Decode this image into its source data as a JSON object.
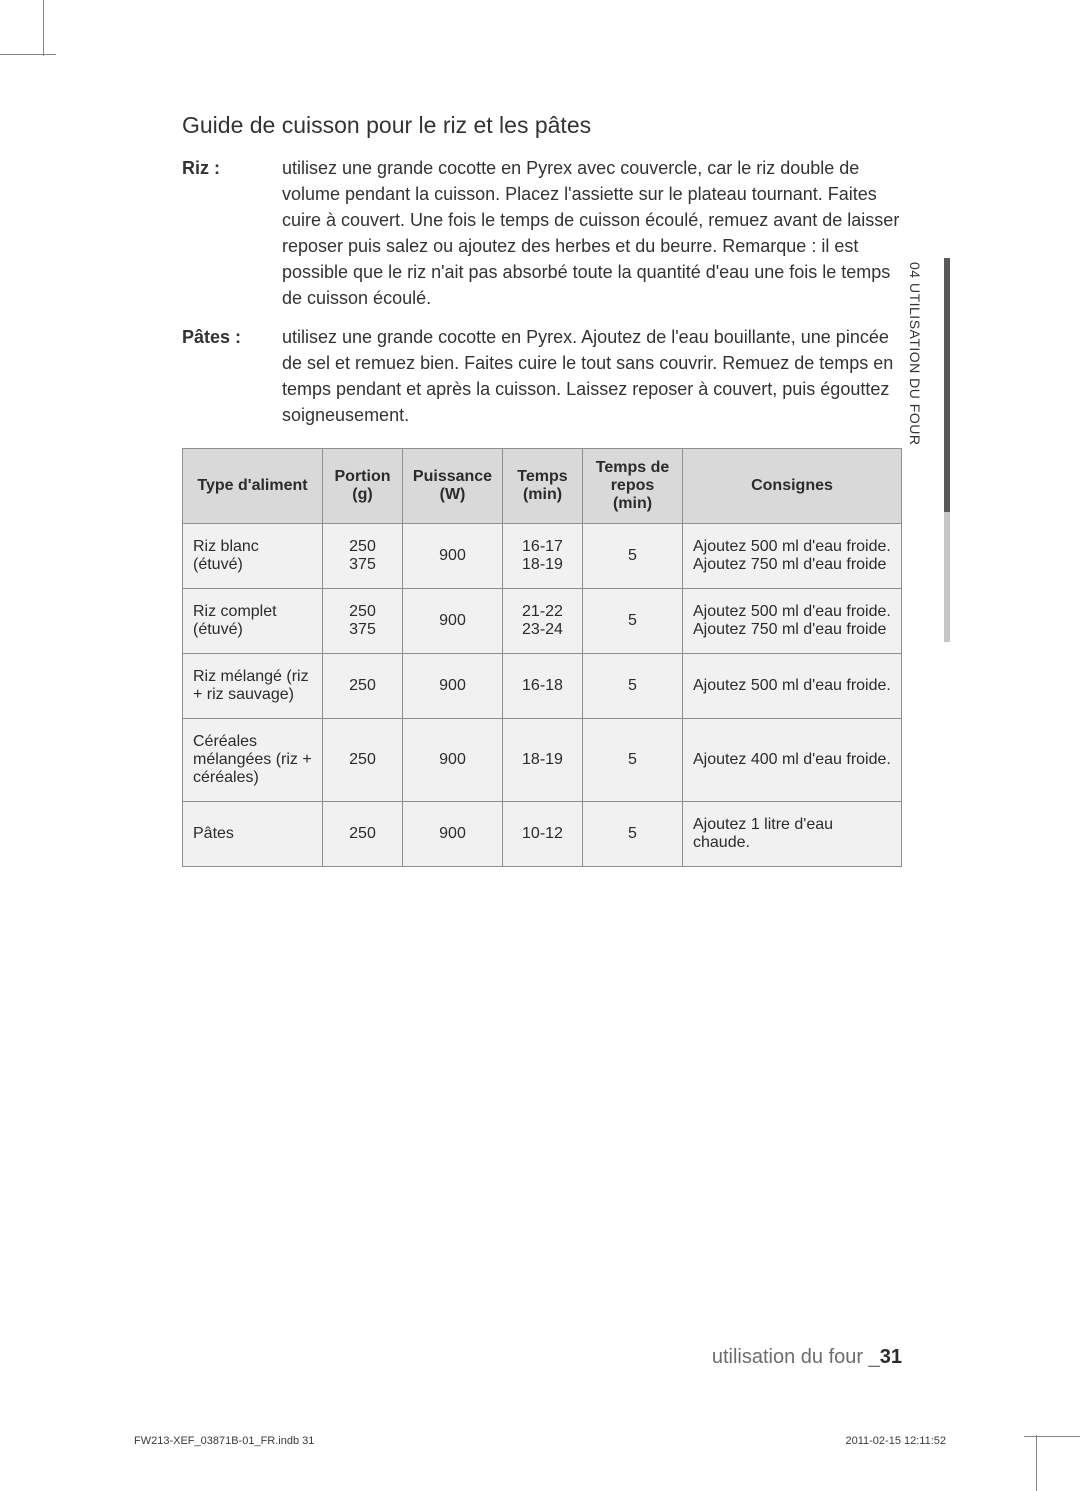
{
  "title": "Guide de cuisson pour le riz et les pâtes",
  "defs": [
    {
      "term": "Riz :",
      "desc": "utilisez une grande cocotte en Pyrex avec couvercle, car le riz double de volume pendant la cuisson. Placez l'assiette sur le plateau tournant. Faites cuire à couvert. Une fois le temps de cuisson écoulé, remuez avant de laisser reposer puis salez ou ajoutez des herbes et du beurre. Remarque : il est possible que le riz n'ait pas absorbé toute la quantité d'eau une fois le temps de cuisson écoulé."
    },
    {
      "term": "Pâtes :",
      "desc": "utilisez une grande cocotte en Pyrex. Ajoutez de l'eau bouillante, une pincée de sel et remuez bien. Faites cuire le tout sans couvrir. Remuez de temps en temps pendant et après la cuisson. Laissez reposer à couvert, puis égouttez soigneusement."
    }
  ],
  "table": {
    "headers": {
      "type": "Type d'aliment",
      "portion": "Portion (g)",
      "power": "Puissance (W)",
      "time": "Temps (min)",
      "rest": "Temps de repos (min)",
      "instr": "Consignes"
    },
    "rows": [
      {
        "type": "Riz blanc (étuvé)",
        "portion": "250\n375",
        "power": "900",
        "time": "16-17\n18-19",
        "rest": "5",
        "instr": "Ajoutez 500 ml d'eau froide.\nAjoutez 750 ml d'eau froide"
      },
      {
        "type": "Riz complet (étuvé)",
        "portion": "250\n375",
        "power": "900",
        "time": "21-22\n23-24",
        "rest": "5",
        "instr": "Ajoutez 500 ml d'eau froide.\nAjoutez 750 ml d'eau froide"
      },
      {
        "type": "Riz mélangé (riz + riz sauvage)",
        "portion": "250",
        "power": "900",
        "time": "16-18",
        "rest": "5",
        "instr": "Ajoutez 500 ml d'eau froide."
      },
      {
        "type": "Céréales mélangées (riz + céréales)",
        "portion": "250",
        "power": "900",
        "time": "18-19",
        "rest": "5",
        "instr": "Ajoutez 400 ml d'eau froide."
      },
      {
        "type": "Pâtes",
        "portion": "250",
        "power": "900",
        "time": "10-12",
        "rest": "5",
        "instr": "Ajoutez 1 litre d'eau chaude."
      }
    ]
  },
  "side_label": "04 UTILISATION DU FOUR",
  "footer": {
    "text": "utilisation du four _",
    "page": "31"
  },
  "slug": {
    "left": "FW213-XEF_03871B-01_FR.indb   31",
    "right": "2011-02-15      12:11:52"
  },
  "colors": {
    "th_bg": "#d9d9d9",
    "td_bg": "#f1f1f1",
    "border": "#8f8f8f",
    "sidebar_dark": "#5a5a5a",
    "sidebar_light": "#c6c6c6",
    "footer_grey": "#6d6d6d"
  }
}
